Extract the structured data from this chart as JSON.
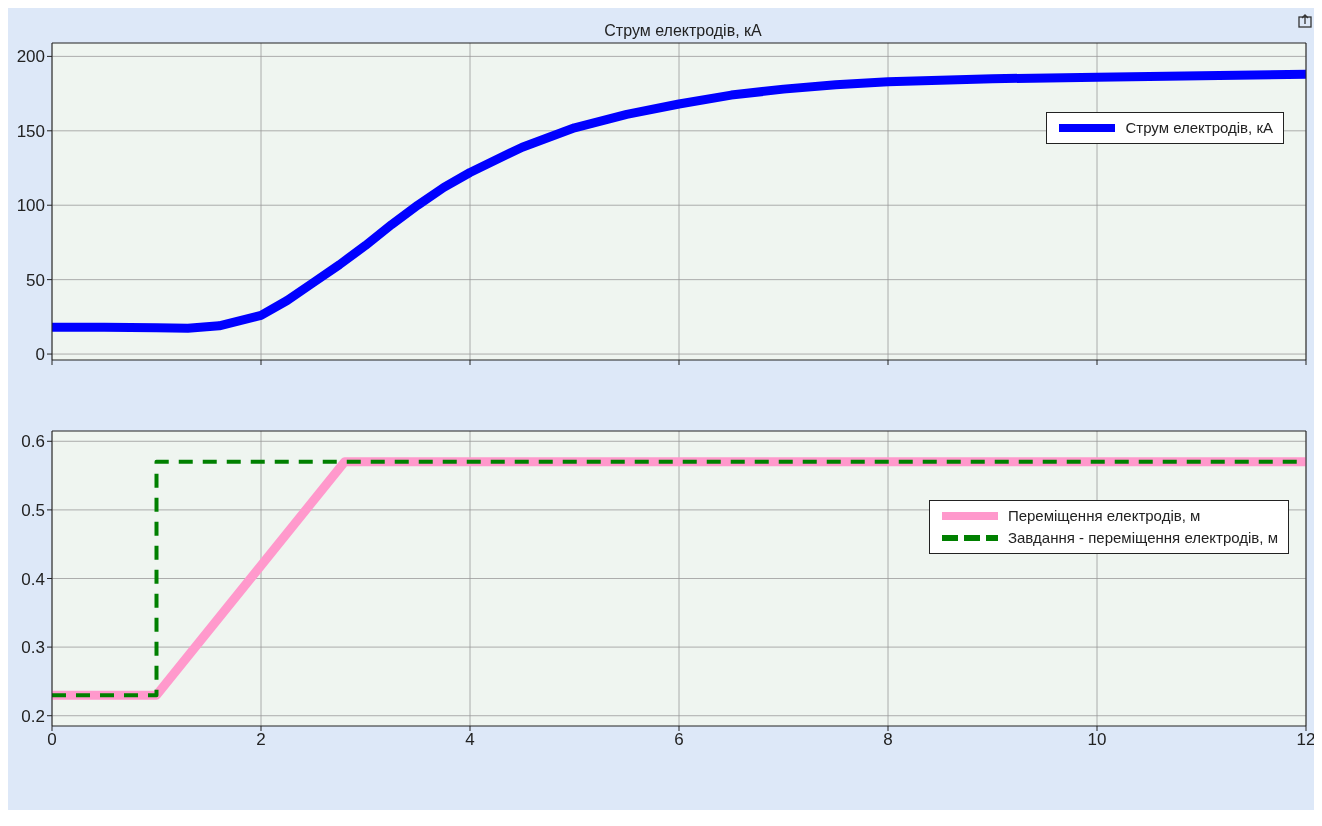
{
  "chart_data": [
    {
      "type": "line",
      "title": "Струм електродів, кА",
      "xlim": [
        0,
        12
      ],
      "xticks": [
        0,
        2,
        4,
        6,
        8,
        10,
        12
      ],
      "ylim": [
        -4,
        209
      ],
      "yticks": [
        0,
        50,
        100,
        150,
        200
      ],
      "grid": true,
      "legend": "top right",
      "tick_labels": "y",
      "line_style": "solid",
      "x": [
        0,
        0.5,
        1,
        1.3,
        1.6,
        2,
        2.25,
        2.5,
        2.75,
        3,
        3.25,
        3.5,
        3.75,
        4,
        4.5,
        5,
        5.5,
        6,
        6.5,
        7,
        7.5,
        8,
        9,
        10,
        11,
        12
      ],
      "series": [
        {
          "name": "Струм електродів, кА",
          "color": "#0000ff",
          "values": [
            18,
            18,
            17.6,
            17.4,
            19,
            26,
            36,
            48,
            60,
            73,
            87,
            100,
            112,
            122,
            139,
            152,
            161,
            168,
            174,
            178,
            181,
            183,
            185,
            186,
            187,
            188
          ]
        }
      ]
    },
    {
      "type": "line",
      "xlim": [
        0,
        12
      ],
      "xticks": [
        0,
        2,
        4,
        6,
        8,
        10,
        12
      ],
      "ylim": [
        0.185,
        0.615
      ],
      "yticks": [
        0.2,
        0.3,
        0.4,
        0.5,
        0.6
      ],
      "grid": true,
      "legend": "right",
      "series": [
        {
          "name": "Переміщення електродів, м",
          "color": "#ff99cc",
          "line_style": "solid",
          "x": [
            0,
            1,
            2.8,
            12
          ],
          "values": [
            0.23,
            0.23,
            0.57,
            0.57
          ]
        },
        {
          "name": "Завдання - переміщення електродів, м",
          "color": "#008000",
          "line_style": "dashed",
          "x": [
            0,
            1,
            1,
            12
          ],
          "values": [
            0.23,
            0.23,
            0.57,
            0.57
          ]
        }
      ]
    }
  ]
}
